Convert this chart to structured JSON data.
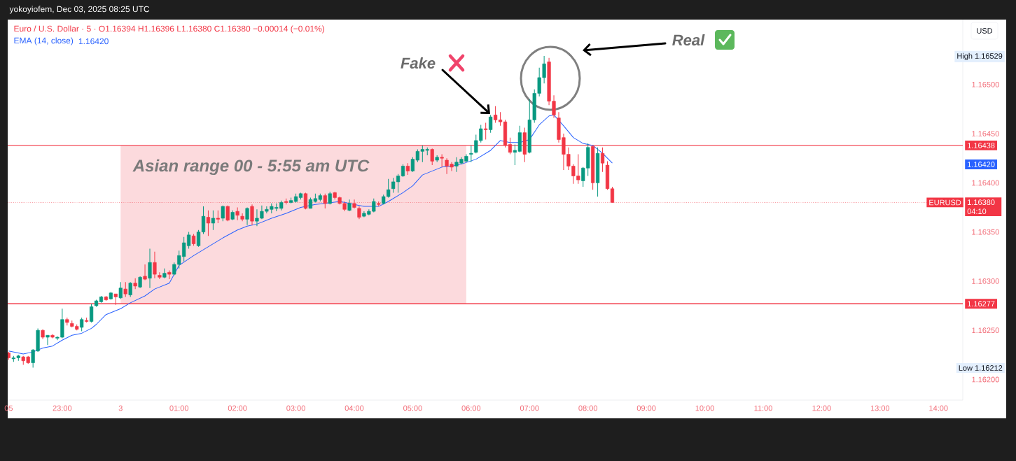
{
  "chart_data": {
    "type": "candlestick",
    "title": "Euro / U.S. Dollar · 5 · O1.16394  H1.16396  L1.16380  C1.16380  −0.00014 (−0.01%)",
    "x": [
      "2025-12-02T22:05",
      "2025-12-02T22:10",
      "2025-12-02T22:15",
      "2025-12-02T22:20",
      "2025-12-02T22:25",
      "2025-12-02T22:30",
      "2025-12-02T22:35",
      "2025-12-02T22:40",
      "2025-12-02T22:45",
      "2025-12-02T22:50",
      "2025-12-02T22:55",
      "2025-12-02T23:00",
      "2025-12-02T23:05",
      "2025-12-02T23:10",
      "2025-12-02T23:15",
      "2025-12-02T23:20",
      "2025-12-02T23:25",
      "2025-12-02T23:30",
      "2025-12-02T23:35",
      "2025-12-02T23:40",
      "2025-12-02T23:45",
      "2025-12-02T23:50",
      "2025-12-02T23:55",
      "2025-12-03T00:00",
      "2025-12-03T00:05",
      "2025-12-03T00:10",
      "2025-12-03T00:15",
      "2025-12-03T00:20",
      "2025-12-03T00:25",
      "2025-12-03T00:30",
      "2025-12-03T00:35",
      "2025-12-03T00:40",
      "2025-12-03T00:45",
      "2025-12-03T00:50",
      "2025-12-03T00:55",
      "2025-12-03T01:00",
      "2025-12-03T01:05",
      "2025-12-03T01:10",
      "2025-12-03T01:15",
      "2025-12-03T01:20",
      "2025-12-03T01:25",
      "2025-12-03T01:30",
      "2025-12-03T01:35",
      "2025-12-03T01:40",
      "2025-12-03T01:45",
      "2025-12-03T01:50",
      "2025-12-03T01:55",
      "2025-12-03T02:00",
      "2025-12-03T02:05",
      "2025-12-03T02:10",
      "2025-12-03T02:15",
      "2025-12-03T02:20",
      "2025-12-03T02:25",
      "2025-12-03T02:30",
      "2025-12-03T02:35",
      "2025-12-03T02:40",
      "2025-12-03T02:45",
      "2025-12-03T02:50",
      "2025-12-03T02:55",
      "2025-12-03T03:00",
      "2025-12-03T03:05",
      "2025-12-03T03:10",
      "2025-12-03T03:15",
      "2025-12-03T03:20",
      "2025-12-03T03:25",
      "2025-12-03T03:30",
      "2025-12-03T03:35",
      "2025-12-03T03:40",
      "2025-12-03T03:45",
      "2025-12-03T03:50",
      "2025-12-03T03:55",
      "2025-12-03T04:00",
      "2025-12-03T04:05",
      "2025-12-03T04:10",
      "2025-12-03T04:15",
      "2025-12-03T04:20",
      "2025-12-03T04:25",
      "2025-12-03T04:30",
      "2025-12-03T04:35",
      "2025-12-03T04:40",
      "2025-12-03T04:45",
      "2025-12-03T04:50",
      "2025-12-03T04:55",
      "2025-12-03T05:00",
      "2025-12-03T05:05",
      "2025-12-03T05:10",
      "2025-12-03T05:15",
      "2025-12-03T05:20",
      "2025-12-03T05:25",
      "2025-12-03T05:30",
      "2025-12-03T05:35",
      "2025-12-03T05:40",
      "2025-12-03T05:45",
      "2025-12-03T05:50",
      "2025-12-03T05:55",
      "2025-12-03T06:00",
      "2025-12-03T06:05",
      "2025-12-03T06:10",
      "2025-12-03T06:15",
      "2025-12-03T06:20",
      "2025-12-03T06:25",
      "2025-12-03T06:30",
      "2025-12-03T06:35",
      "2025-12-03T06:40",
      "2025-12-03T06:45",
      "2025-12-03T06:50",
      "2025-12-03T06:55",
      "2025-12-03T07:00",
      "2025-12-03T07:05",
      "2025-12-03T07:10",
      "2025-12-03T07:15",
      "2025-12-03T07:20",
      "2025-12-03T07:25",
      "2025-12-03T07:30",
      "2025-12-03T07:35",
      "2025-12-03T07:40",
      "2025-12-03T07:45",
      "2025-12-03T07:50",
      "2025-12-03T07:55",
      "2025-12-03T08:00",
      "2025-12-03T08:05",
      "2025-12-03T08:10",
      "2025-12-03T08:15",
      "2025-12-03T08:20",
      "2025-12-03T08:25"
    ],
    "ohlc": [
      [
        1.16227,
        1.16228,
        1.1622,
        1.16222
      ],
      [
        1.16221,
        1.16224,
        1.16218,
        1.16222
      ],
      [
        1.16222,
        1.16225,
        1.16219,
        1.16224
      ],
      [
        1.16223,
        1.16224,
        1.16215,
        1.16219
      ],
      [
        1.16223,
        1.16224,
        1.16216,
        1.16217
      ],
      [
        1.16217,
        1.16231,
        1.16212,
        1.1623
      ],
      [
        1.16229,
        1.16252,
        1.16228,
        1.1625
      ],
      [
        1.1625,
        1.16251,
        1.16241,
        1.16243
      ],
      [
        1.16243,
        1.16245,
        1.16235,
        1.16245
      ],
      [
        1.16245,
        1.16246,
        1.16242,
        1.16243
      ],
      [
        1.16242,
        1.16244,
        1.1624,
        1.16243
      ],
      [
        1.16243,
        1.16272,
        1.16242,
        1.16261
      ],
      [
        1.16261,
        1.16263,
        1.16255,
        1.16258
      ],
      [
        1.16257,
        1.1626,
        1.16253,
        1.16254
      ],
      [
        1.16254,
        1.16256,
        1.1625,
        1.16251
      ],
      [
        1.16253,
        1.16263,
        1.16249,
        1.16261
      ],
      [
        1.1626,
        1.16263,
        1.16258,
        1.16259
      ],
      [
        1.16259,
        1.16277,
        1.16258,
        1.16274
      ],
      [
        1.16275,
        1.16281,
        1.16274,
        1.1628
      ],
      [
        1.16279,
        1.16285,
        1.16278,
        1.16284
      ],
      [
        1.16284,
        1.16285,
        1.1628,
        1.16281
      ],
      [
        1.16282,
        1.16289,
        1.16281,
        1.16288
      ],
      [
        1.16287,
        1.16287,
        1.16276,
        1.16284
      ],
      [
        1.16283,
        1.16299,
        1.16282,
        1.16293
      ],
      [
        1.16292,
        1.16299,
        1.16284,
        1.16287
      ],
      [
        1.16286,
        1.16299,
        1.16284,
        1.16298
      ],
      [
        1.16298,
        1.16303,
        1.16292,
        1.16295
      ],
      [
        1.16294,
        1.16305,
        1.16293,
        1.16304
      ],
      [
        1.16305,
        1.16317,
        1.16301,
        1.16302
      ],
      [
        1.16303,
        1.16333,
        1.16293,
        1.16319
      ],
      [
        1.16319,
        1.1633,
        1.16303,
        1.16307
      ],
      [
        1.16306,
        1.16309,
        1.16302,
        1.16304
      ],
      [
        1.16304,
        1.16313,
        1.16303,
        1.16308
      ],
      [
        1.16309,
        1.16311,
        1.16302,
        1.16307
      ],
      [
        1.16307,
        1.16319,
        1.16306,
        1.16317
      ],
      [
        1.16317,
        1.16331,
        1.16313,
        1.16326
      ],
      [
        1.16325,
        1.16345,
        1.1632,
        1.16339
      ],
      [
        1.16336,
        1.1635,
        1.16333,
        1.16347
      ],
      [
        1.16346,
        1.16348,
        1.16336,
        1.16338
      ],
      [
        1.16336,
        1.16352,
        1.16335,
        1.1635
      ],
      [
        1.1635,
        1.16376,
        1.16348,
        1.16366
      ],
      [
        1.16365,
        1.16372,
        1.16346,
        1.16359
      ],
      [
        1.16359,
        1.16372,
        1.16352,
        1.16364
      ],
      [
        1.16364,
        1.16372,
        1.16359,
        1.16363
      ],
      [
        1.16364,
        1.16377,
        1.16361,
        1.16376
      ],
      [
        1.16376,
        1.16377,
        1.16361,
        1.16362
      ],
      [
        1.16363,
        1.16372,
        1.16362,
        1.1637
      ],
      [
        1.16371,
        1.16375,
        1.16362,
        1.16367
      ],
      [
        1.16366,
        1.16369,
        1.16361,
        1.16363
      ],
      [
        1.16363,
        1.16375,
        1.16357,
        1.16374
      ],
      [
        1.16376,
        1.16378,
        1.16357,
        1.16361
      ],
      [
        1.16361,
        1.16373,
        1.16356,
        1.16364
      ],
      [
        1.16364,
        1.16377,
        1.16363,
        1.16371
      ],
      [
        1.16371,
        1.16376,
        1.16369,
        1.16373
      ],
      [
        1.16373,
        1.16379,
        1.16369,
        1.16376
      ],
      [
        1.16374,
        1.16379,
        1.16371,
        1.16375
      ],
      [
        1.16374,
        1.16382,
        1.16372,
        1.1638
      ],
      [
        1.16381,
        1.16384,
        1.16378,
        1.1638
      ],
      [
        1.1638,
        1.16385,
        1.16379,
        1.16382
      ],
      [
        1.16381,
        1.16389,
        1.1638,
        1.16386
      ],
      [
        1.16385,
        1.1639,
        1.16383,
        1.16389
      ],
      [
        1.16389,
        1.1639,
        1.16373,
        1.16374
      ],
      [
        1.16374,
        1.16385,
        1.16374,
        1.16383
      ],
      [
        1.16381,
        1.16389,
        1.1638,
        1.16384
      ],
      [
        1.16383,
        1.16389,
        1.16381,
        1.16387
      ],
      [
        1.16387,
        1.16389,
        1.16374,
        1.16379
      ],
      [
        1.16379,
        1.16391,
        1.16378,
        1.16389
      ],
      [
        1.1639,
        1.16391,
        1.16383,
        1.16385
      ],
      [
        1.16385,
        1.16386,
        1.16378,
        1.16379
      ],
      [
        1.16379,
        1.16381,
        1.16371,
        1.16373
      ],
      [
        1.16372,
        1.16383,
        1.16371,
        1.16379
      ],
      [
        1.16379,
        1.16383,
        1.16374,
        1.16375
      ],
      [
        1.16374,
        1.16376,
        1.16363,
        1.16365
      ],
      [
        1.16366,
        1.16371,
        1.16365,
        1.16369
      ],
      [
        1.16368,
        1.16373,
        1.16367,
        1.16371
      ],
      [
        1.16371,
        1.16384,
        1.1637,
        1.16381
      ],
      [
        1.16379,
        1.16381,
        1.16376,
        1.16378
      ],
      [
        1.16379,
        1.16388,
        1.16378,
        1.16386
      ],
      [
        1.16386,
        1.16404,
        1.16385,
        1.16393
      ],
      [
        1.16394,
        1.16405,
        1.1639,
        1.16401
      ],
      [
        1.16401,
        1.16409,
        1.1639,
        1.16407
      ],
      [
        1.16407,
        1.16419,
        1.16406,
        1.16417
      ],
      [
        1.16417,
        1.1642,
        1.16408,
        1.16412
      ],
      [
        1.16412,
        1.16426,
        1.16411,
        1.16424
      ],
      [
        1.16423,
        1.16434,
        1.16421,
        1.16432
      ],
      [
        1.16432,
        1.16438,
        1.16421,
        1.16434
      ],
      [
        1.16433,
        1.16436,
        1.16428,
        1.16434
      ],
      [
        1.16434,
        1.16435,
        1.16418,
        1.16422
      ],
      [
        1.16423,
        1.16428,
        1.16421,
        1.16426
      ],
      [
        1.16426,
        1.16429,
        1.16416,
        1.16425
      ],
      [
        1.16423,
        1.16425,
        1.16409,
        1.16417
      ],
      [
        1.16419,
        1.16421,
        1.16412,
        1.16416
      ],
      [
        1.16417,
        1.16426,
        1.16411,
        1.16421
      ],
      [
        1.1642,
        1.16426,
        1.16419,
        1.16424
      ],
      [
        1.16422,
        1.16429,
        1.16421,
        1.16427
      ],
      [
        1.16429,
        1.16438,
        1.16421,
        1.1643
      ],
      [
        1.16431,
        1.16449,
        1.1643,
        1.16443
      ],
      [
        1.16443,
        1.16459,
        1.16441,
        1.16455
      ],
      [
        1.16455,
        1.16461,
        1.16444,
        1.16454
      ],
      [
        1.16454,
        1.16469,
        1.16451,
        1.16467
      ],
      [
        1.16469,
        1.16478,
        1.16461,
        1.16464
      ],
      [
        1.16464,
        1.16472,
        1.16458,
        1.16462
      ],
      [
        1.16462,
        1.16464,
        1.16436,
        1.16438
      ],
      [
        1.16439,
        1.16446,
        1.16429,
        1.16431
      ],
      [
        1.16431,
        1.16439,
        1.16418,
        1.16433
      ],
      [
        1.16432,
        1.16458,
        1.16431,
        1.16451
      ],
      [
        1.16451,
        1.16456,
        1.16421,
        1.16429
      ],
      [
        1.16431,
        1.16485,
        1.1643,
        1.16464
      ],
      [
        1.16464,
        1.16495,
        1.16461,
        1.16491
      ],
      [
        1.16491,
        1.16517,
        1.16488,
        1.16507
      ],
      [
        1.16507,
        1.16529,
        1.16501,
        1.16521
      ],
      [
        1.16523,
        1.16527,
        1.16479,
        1.16483
      ],
      [
        1.16483,
        1.16489,
        1.16466,
        1.16469
      ],
      [
        1.16466,
        1.16472,
        1.16441,
        1.16444
      ],
      [
        1.16446,
        1.1645,
        1.16413,
        1.16429
      ],
      [
        1.16429,
        1.16436,
        1.16413,
        1.16417
      ],
      [
        1.16417,
        1.16419,
        1.16399,
        1.16407
      ],
      [
        1.16407,
        1.16429,
        1.16399,
        1.16403
      ],
      [
        1.16402,
        1.16416,
        1.16396,
        1.16415
      ],
      [
        1.16415,
        1.1644,
        1.16407,
        1.16436
      ],
      [
        1.16437,
        1.16438,
        1.16393,
        1.164
      ],
      [
        1.164,
        1.16436,
        1.16386,
        1.1643
      ],
      [
        1.1643,
        1.16436,
        1.16411,
        1.1642
      ],
      [
        1.16418,
        1.16422,
        1.16393,
        1.16394
      ],
      [
        1.16394,
        1.16396,
        1.1638,
        1.1638
      ]
    ],
    "colors": [
      "#f23645",
      "#089981",
      "#089981",
      "#f23645",
      "#f23645",
      "#089981",
      "#089981",
      "#f23645",
      "#089981",
      "#f23645",
      "#089981",
      "#089981",
      "#f23645",
      "#f23645",
      "#f23645",
      "#089981",
      "#f23645",
      "#089981",
      "#089981",
      "#089981",
      "#f23645",
      "#089981",
      "#f23645",
      "#089981",
      "#f23645",
      "#089981",
      "#f23645",
      "#089981",
      "#f23645",
      "#089981",
      "#f23645",
      "#f23645",
      "#089981",
      "#f23645",
      "#089981",
      "#089981",
      "#089981",
      "#089981",
      "#f23645",
      "#089981",
      "#089981",
      "#f23645",
      "#089981",
      "#f23645",
      "#089981",
      "#f23645",
      "#089981",
      "#f23645",
      "#f23645",
      "#089981",
      "#f23645",
      "#089981",
      "#089981",
      "#089981",
      "#089981",
      "#089981",
      "#089981",
      "#f23645",
      "#089981",
      "#089981",
      "#089981",
      "#f23645",
      "#089981",
      "#089981",
      "#089981",
      "#f23645",
      "#089981",
      "#f23645",
      "#f23645",
      "#f23645",
      "#089981",
      "#f23645",
      "#f23645",
      "#089981",
      "#089981",
      "#089981",
      "#f23645",
      "#089981",
      "#089981",
      "#089981",
      "#089981",
      "#089981",
      "#f23645",
      "#089981",
      "#089981",
      "#089981",
      "#089981",
      "#f23645",
      "#089981",
      "#f23645",
      "#f23645",
      "#f23645",
      "#089981",
      "#089981",
      "#089981",
      "#089981",
      "#089981",
      "#089981",
      "#f23645",
      "#089981",
      "#f23645",
      "#f23645",
      "#f23645",
      "#f23645",
      "#089981",
      "#089981",
      "#f23645",
      "#089981",
      "#089981",
      "#089981",
      "#089981",
      "#f23645",
      "#f23645",
      "#f23645",
      "#f23645",
      "#f23645",
      "#f23645",
      "#f23645",
      "#089981",
      "#089981",
      "#f23645",
      "#089981",
      "#f23645",
      "#f23645",
      "#f23645"
    ],
    "series": [
      {
        "name": "EMA (14, close)",
        "type": "line",
        "color": "#2962ff",
        "x": [
          "2025-12-02T22:05",
          "2025-12-02T22:20",
          "2025-12-02T22:30",
          "2025-12-02T22:40",
          "2025-12-02T22:50",
          "2025-12-02T23:00",
          "2025-12-02T23:10",
          "2025-12-02T23:20",
          "2025-12-02T23:30",
          "2025-12-02T23:35",
          "2025-12-02T23:45",
          "2025-12-03T00:00",
          "2025-12-03T00:10",
          "2025-12-03T00:25",
          "2025-12-03T00:35",
          "2025-12-03T00:50",
          "2025-12-03T01:00",
          "2025-12-03T01:15",
          "2025-12-03T01:45",
          "2025-12-03T02:00",
          "2025-12-03T02:10",
          "2025-12-03T02:20",
          "2025-12-03T02:35",
          "2025-12-03T02:50",
          "2025-12-03T03:05",
          "2025-12-03T03:20",
          "2025-12-03T03:30",
          "2025-12-03T03:45",
          "2025-12-03T03:55",
          "2025-12-03T04:10",
          "2025-12-03T04:25",
          "2025-12-03T04:35",
          "2025-12-03T04:50",
          "2025-12-03T05:00",
          "2025-12-03T05:10",
          "2025-12-03T05:20",
          "2025-12-03T05:30",
          "2025-12-03T05:40",
          "2025-12-03T05:50",
          "2025-12-03T06:05",
          "2025-12-03T06:20",
          "2025-12-03T06:30",
          "2025-12-03T06:40",
          "2025-12-03T06:50",
          "2025-12-03T07:00",
          "2025-12-03T07:10",
          "2025-12-03T07:20",
          "2025-12-03T07:25",
          "2025-12-03T07:35",
          "2025-12-03T07:45",
          "2025-12-03T07:55",
          "2025-12-03T08:05",
          "2025-12-03T08:15",
          "2025-12-03T08:25"
        ],
        "values": [
          1.16229,
          1.16226,
          1.16228,
          1.16232,
          1.16234,
          1.1624,
          1.16245,
          1.16247,
          1.16252,
          1.16256,
          1.16266,
          1.16272,
          1.16278,
          1.16285,
          1.16292,
          1.16298,
          1.16316,
          1.16326,
          1.16344,
          1.16352,
          1.16356,
          1.16358,
          1.16364,
          1.16369,
          1.16375,
          1.16378,
          1.16379,
          1.16381,
          1.16379,
          1.16376,
          1.16376,
          1.16381,
          1.1639,
          1.16397,
          1.16408,
          1.16412,
          1.16416,
          1.16417,
          1.16419,
          1.16424,
          1.16433,
          1.16443,
          1.16441,
          1.16441,
          1.16444,
          1.16459,
          1.16468,
          1.16469,
          1.16458,
          1.16446,
          1.1644,
          1.16438,
          1.1643,
          1.1642
        ]
      }
    ],
    "xlim": [
      "2025-12-02T22:04",
      "2025-12-03T14:25"
    ],
    "xticks": [
      {
        "value": "2025-12-02T22:05",
        "label": "05"
      },
      {
        "value": "2025-12-02T23:00",
        "label": "23:00"
      },
      {
        "value": "2025-12-03T00:00",
        "label": "3"
      },
      {
        "value": "2025-12-03T01:00",
        "label": "01:00"
      },
      {
        "value": "2025-12-03T02:00",
        "label": "02:00"
      },
      {
        "value": "2025-12-03T03:00",
        "label": "03:00"
      },
      {
        "value": "2025-12-03T04:00",
        "label": "04:00"
      },
      {
        "value": "2025-12-03T05:00",
        "label": "05:00"
      },
      {
        "value": "2025-12-03T06:00",
        "label": "06:00"
      },
      {
        "value": "2025-12-03T07:00",
        "label": "07:00"
      },
      {
        "value": "2025-12-03T08:00",
        "label": "08:00"
      },
      {
        "value": "2025-12-03T09:00",
        "label": "09:00"
      },
      {
        "value": "2025-12-03T10:00",
        "label": "10:00"
      },
      {
        "value": "2025-12-03T11:00",
        "label": "11:00"
      },
      {
        "value": "2025-12-03T12:00",
        "label": "12:00"
      },
      {
        "value": "2025-12-03T13:00",
        "label": "13:00"
      },
      {
        "value": "2025-12-03T14:00",
        "label": "14:00"
      }
    ],
    "ylim": [
      1.16179,
      1.16566
    ],
    "yticks": [
      {
        "value": 1.162,
        "label": "1.16200"
      },
      {
        "value": 1.1625,
        "label": "1.16250"
      },
      {
        "value": 1.163,
        "label": "1.16300"
      },
      {
        "value": 1.1635,
        "label": "1.16350"
      },
      {
        "value": 1.164,
        "label": "1.16400"
      },
      {
        "value": 1.1645,
        "label": "1.16450"
      },
      {
        "value": 1.165,
        "label": "1.16500"
      }
    ],
    "ref_lines": [
      {
        "axis": "y",
        "value": 1.16438,
        "label": "1.16438",
        "color": "#f23645",
        "line_style": "solid"
      },
      {
        "axis": "y",
        "value": 1.16277,
        "label": "1.16277",
        "color": "#f23645",
        "line_style": "solid"
      },
      {
        "axis": "y",
        "value": 1.1638,
        "label": "EURUSD",
        "color": "#f23645",
        "line_style": "dotted"
      }
    ],
    "bands": [
      {
        "axis": "x",
        "from": "2025-12-03T00:00",
        "to": "2025-12-03T05:55",
        "label": "Asian range 00 - 5:55 am UTC",
        "color": "#fcdadd"
      }
    ],
    "legend": "top left",
    "annotations": [
      "yokoyiofem, Dec 03, 2025 08:25 UTC",
      "1.16420",
      "Fake",
      "Real",
      "USD",
      "High 1.16529",
      "Low 1.16212",
      "1.16420",
      "1.16380 04:10"
    ]
  }
}
